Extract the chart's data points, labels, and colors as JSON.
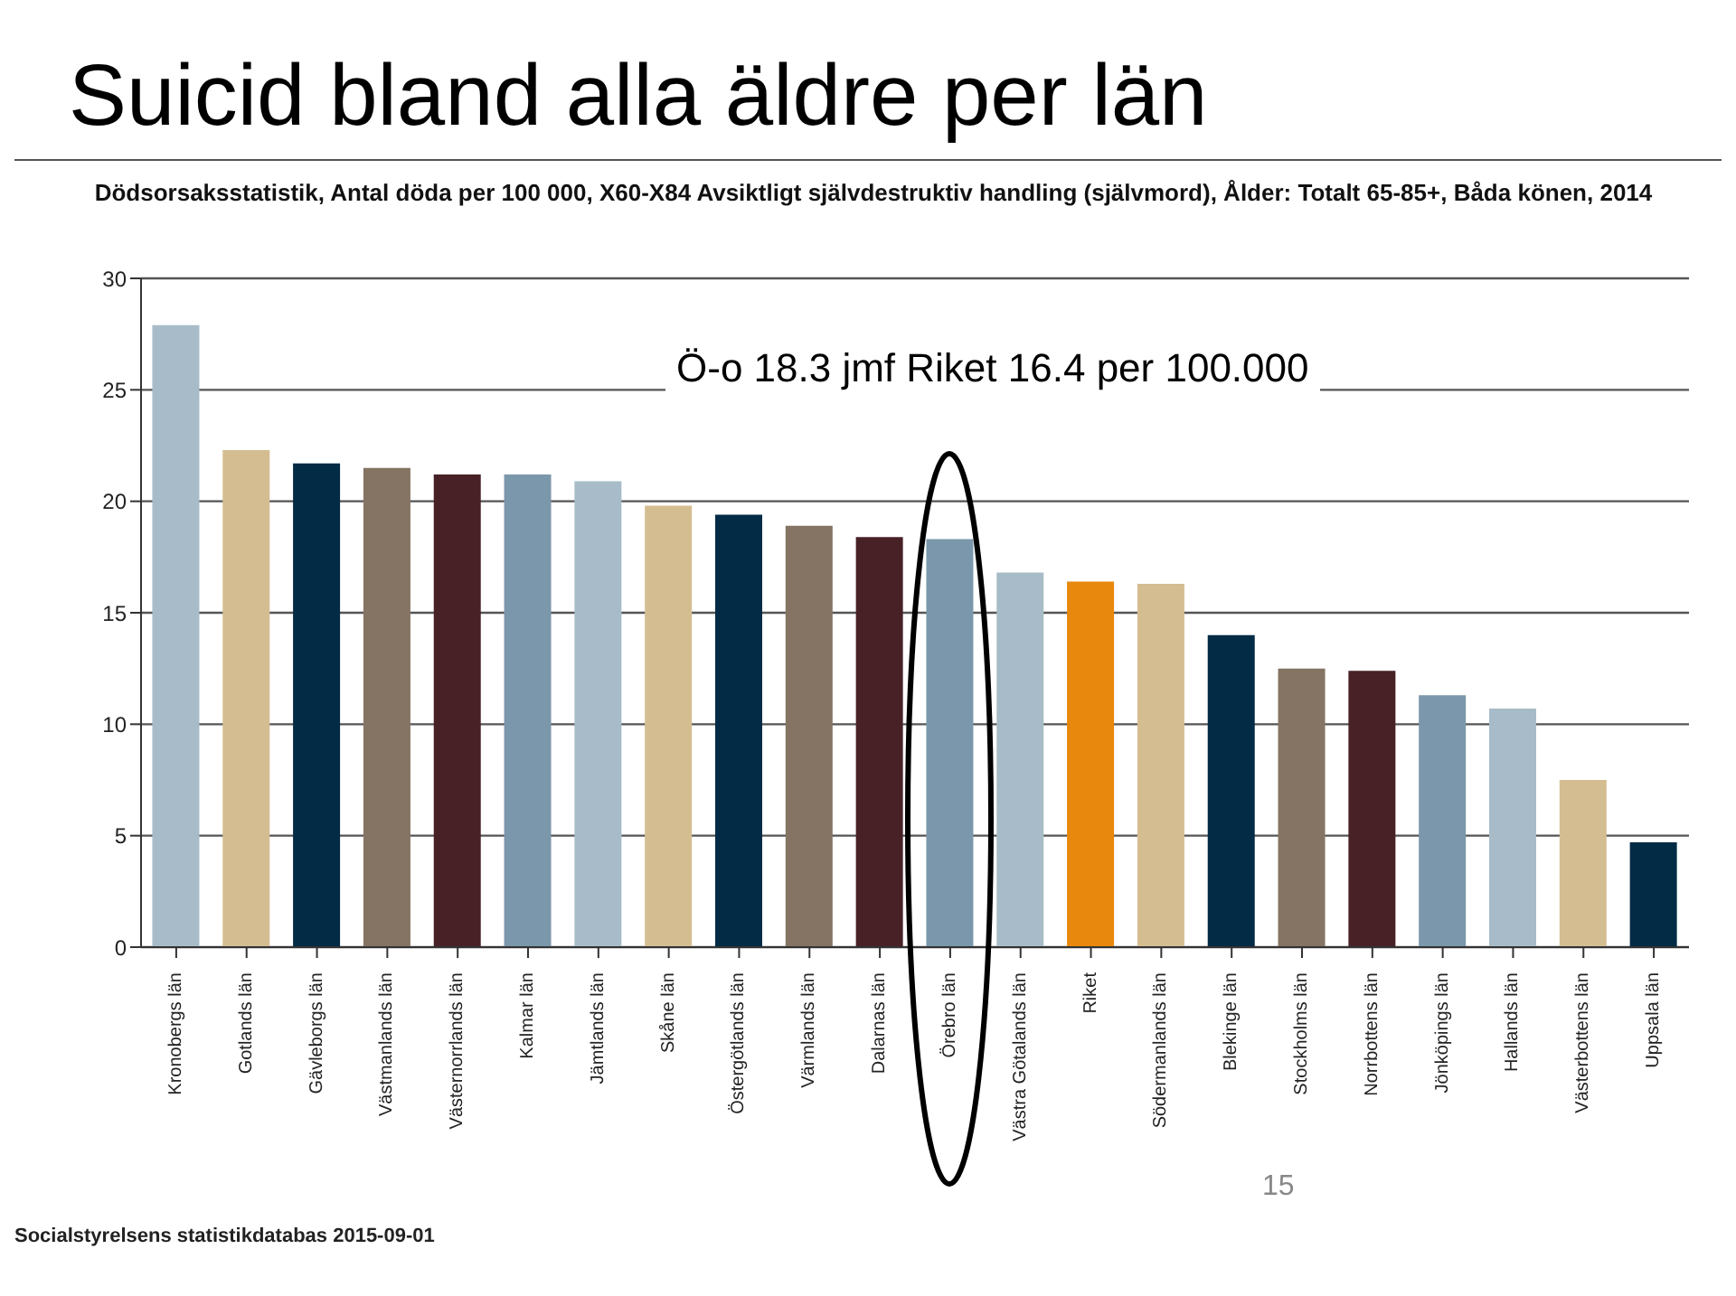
{
  "chart_data": {
    "type": "bar",
    "title": "Suicid bland alla äldre per län",
    "subtitle": "Dödsorsaksstatistik, Antal döda per 100 000, X60-X84 Avsiktligt självdestruktiv handling (självmord), Ålder: Totalt 65-85+, Båda könen, 2014",
    "categories": [
      "Kronobergs län",
      "Gotlands län",
      "Gävleborgs län",
      "Västmanlands län",
      "Västernorrlands län",
      "Kalmar län",
      "Jämtlands län",
      "Skåne län",
      "Östergötlands län",
      "Värmlands län",
      "Dalarnas län",
      "Örebro län",
      "Västra Götalands län",
      "Riket",
      "Södermanlands län",
      "Blekinge län",
      "Stockholms län",
      "Norrbottens län",
      "Jönköpings län",
      "Hallands län",
      "Västerbottens län",
      "Uppsala län"
    ],
    "values": [
      27.9,
      22.3,
      21.7,
      21.5,
      21.2,
      21.2,
      20.9,
      19.8,
      19.4,
      18.9,
      18.4,
      18.3,
      16.8,
      16.4,
      16.3,
      14.0,
      12.5,
      12.4,
      11.3,
      10.7,
      7.5,
      4.7
    ],
    "colors": [
      "#a7bcc8",
      "#d4bd91",
      "#032b45",
      "#857463",
      "#472126",
      "#7b97ab",
      "#a7bcc8",
      "#d4bd91",
      "#032b45",
      "#857463",
      "#472126",
      "#7b97ab",
      "#a7bcc8",
      "#e8880c",
      "#d4bd91",
      "#032b45",
      "#857463",
      "#472126",
      "#7b97ab",
      "#a7bcc8",
      "#d4bd91",
      "#032b45"
    ],
    "ylim": [
      0,
      30
    ],
    "yticks": [
      0,
      5,
      10,
      15,
      20,
      25,
      30
    ],
    "grid": "y",
    "annotations": [
      "Ö-o 18.3 jmf Riket 16.4 per 100.000",
      "Socialstyrelsens statistikdatabas 2015-09-01",
      "15"
    ]
  }
}
